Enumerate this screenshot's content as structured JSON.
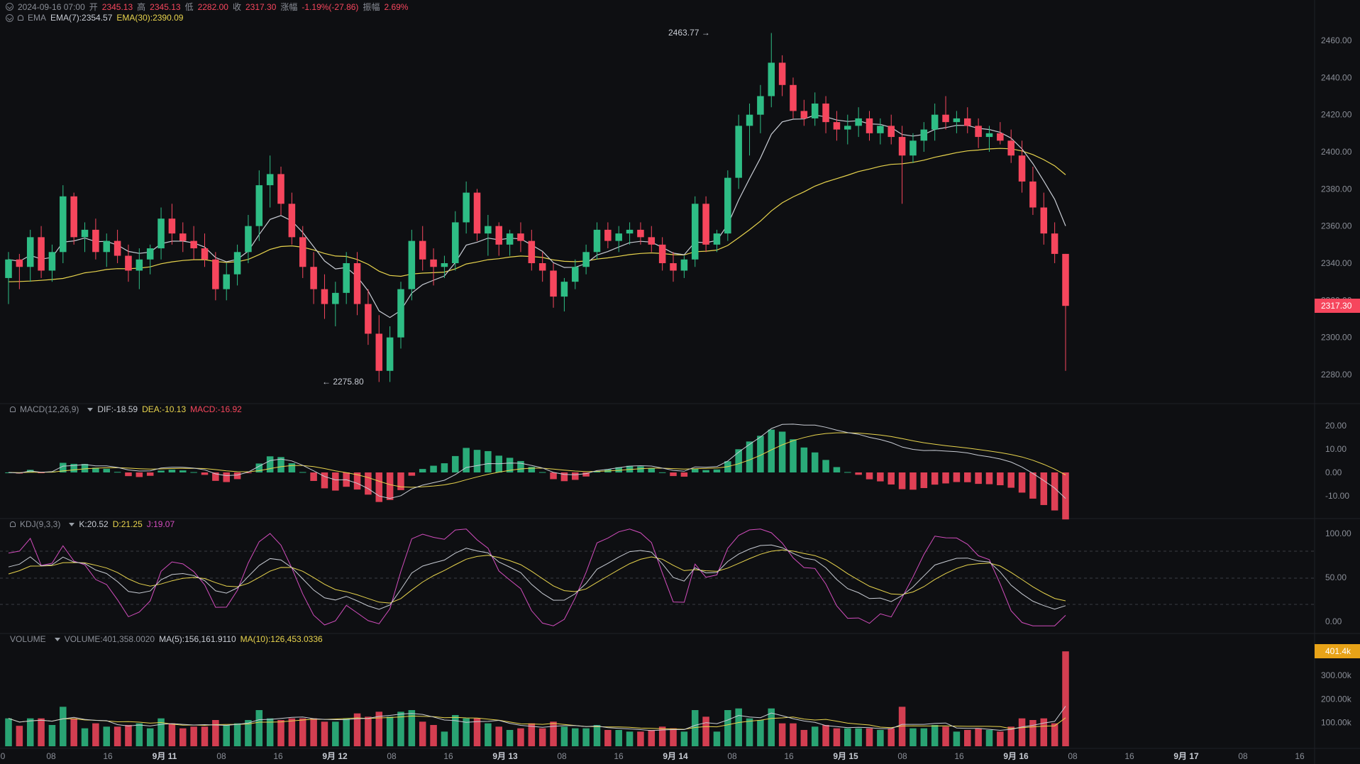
{
  "info_bar": {
    "date": "2024-09-16 07:00",
    "open_label": "开",
    "open": "2345.13",
    "high_label": "高",
    "high": "2345.13",
    "low_label": "低",
    "low": "2282.00",
    "close_label": "收",
    "close": "2317.30",
    "change_label": "涨幅",
    "change": "-1.19%(-27.86)",
    "amp_label": "振幅",
    "amp": "2.69%"
  },
  "ema_legend": {
    "name": "EMA",
    "ema7": "EMA(7):2354.57",
    "ema30": "EMA(30):2390.09"
  },
  "macd_legend": {
    "name": "MACD(12,26,9)",
    "dif": "DIF:-18.59",
    "dea": "DEA:-10.13",
    "macd": "MACD:-16.92"
  },
  "kdj_legend": {
    "name": "KDJ(9,3,3)",
    "k": "K:20.52",
    "d": "D:21.25",
    "j": "J:19.07"
  },
  "volume_legend": {
    "name": "VOLUME",
    "vol": "VOLUME:401,358.0020",
    "ma5": "MA(5):156,161.9110",
    "ma10": "MA(10):126,453.0336"
  },
  "price_axis": [
    "2460.00",
    "2440.00",
    "2420.00",
    "2400.00",
    "2380.00",
    "2360.00",
    "2340.00",
    "2300.00",
    "2280.00"
  ],
  "price_axis_hidden": "2320.00",
  "last_price": "2317.30",
  "high_marker": "2463.77 →",
  "low_marker": "← 2275.80",
  "macd_axis": [
    "20.00",
    "10.00",
    "0.00",
    "-10.00"
  ],
  "kdj_axis": [
    "100.00",
    "50.00",
    "0.00"
  ],
  "volume_axis": [
    "300.00k",
    "200.00k",
    "100.00k"
  ],
  "last_volume": "401.4k",
  "time_axis": [
    "0",
    "08",
    "16",
    "9月 11",
    "08",
    "16",
    "9月 12",
    "08",
    "16",
    "9月 13",
    "08",
    "16",
    "9月 14",
    "08",
    "16",
    "9月 15",
    "08",
    "16",
    "9月 16",
    "08",
    "16",
    "9月 17",
    "08",
    "16"
  ],
  "colors": {
    "up": "#2ebd85",
    "down": "#f6465d",
    "ema7": "#c8ccd4",
    "ema30": "#e8d44d",
    "kdj_j": "#d24dbd",
    "bg": "#0e0f12",
    "grid": "#1f2126"
  },
  "chart_data": {
    "type": "candlestick",
    "interval_hours": 2,
    "candles": [
      [
        2332,
        2346,
        2318,
        2342
      ],
      [
        2342,
        2345,
        2326,
        2338
      ],
      [
        2338,
        2358,
        2330,
        2354
      ],
      [
        2354,
        2360,
        2332,
        2336
      ],
      [
        2336,
        2350,
        2330,
        2346
      ],
      [
        2346,
        2382,
        2340,
        2376
      ],
      [
        2376,
        2378,
        2350,
        2354
      ],
      [
        2354,
        2362,
        2346,
        2358
      ],
      [
        2358,
        2364,
        2342,
        2346
      ],
      [
        2346,
        2356,
        2338,
        2352
      ],
      [
        2352,
        2358,
        2340,
        2344
      ],
      [
        2344,
        2350,
        2330,
        2336
      ],
      [
        2336,
        2348,
        2326,
        2342
      ],
      [
        2342,
        2350,
        2334,
        2348
      ],
      [
        2348,
        2370,
        2342,
        2364
      ],
      [
        2364,
        2372,
        2350,
        2356
      ],
      [
        2356,
        2362,
        2346,
        2352
      ],
      [
        2352,
        2360,
        2342,
        2348
      ],
      [
        2348,
        2356,
        2338,
        2342
      ],
      [
        2342,
        2346,
        2320,
        2326
      ],
      [
        2326,
        2340,
        2320,
        2334
      ],
      [
        2334,
        2350,
        2328,
        2346
      ],
      [
        2346,
        2366,
        2340,
        2360
      ],
      [
        2360,
        2390,
        2352,
        2382
      ],
      [
        2382,
        2398,
        2370,
        2388
      ],
      [
        2388,
        2392,
        2366,
        2372
      ],
      [
        2372,
        2378,
        2350,
        2354
      ],
      [
        2354,
        2360,
        2332,
        2338
      ],
      [
        2338,
        2346,
        2318,
        2326
      ],
      [
        2326,
        2334,
        2310,
        2318
      ],
      [
        2318,
        2330,
        2306,
        2324
      ],
      [
        2324,
        2346,
        2318,
        2340
      ],
      [
        2340,
        2346,
        2312,
        2318
      ],
      [
        2318,
        2326,
        2296,
        2302
      ],
      [
        2302,
        2312,
        2276,
        2282
      ],
      [
        2282,
        2306,
        2276,
        2300
      ],
      [
        2300,
        2330,
        2294,
        2326
      ],
      [
        2326,
        2358,
        2320,
        2352
      ],
      [
        2352,
        2360,
        2336,
        2342
      ],
      [
        2342,
        2348,
        2328,
        2338
      ],
      [
        2338,
        2344,
        2332,
        2340
      ],
      [
        2340,
        2368,
        2336,
        2362
      ],
      [
        2362,
        2384,
        2356,
        2378
      ],
      [
        2378,
        2380,
        2352,
        2356
      ],
      [
        2356,
        2366,
        2344,
        2360
      ],
      [
        2360,
        2362,
        2344,
        2350
      ],
      [
        2350,
        2358,
        2344,
        2356
      ],
      [
        2356,
        2362,
        2346,
        2352
      ],
      [
        2352,
        2358,
        2336,
        2340
      ],
      [
        2340,
        2346,
        2330,
        2336
      ],
      [
        2336,
        2340,
        2316,
        2322
      ],
      [
        2322,
        2332,
        2314,
        2330
      ],
      [
        2330,
        2342,
        2326,
        2338
      ],
      [
        2338,
        2350,
        2334,
        2346
      ],
      [
        2346,
        2362,
        2342,
        2358
      ],
      [
        2358,
        2362,
        2348,
        2352
      ],
      [
        2352,
        2360,
        2346,
        2356
      ],
      [
        2356,
        2362,
        2350,
        2358
      ],
      [
        2358,
        2362,
        2350,
        2354
      ],
      [
        2354,
        2360,
        2346,
        2350
      ],
      [
        2350,
        2354,
        2336,
        2340
      ],
      [
        2340,
        2346,
        2330,
        2336
      ],
      [
        2336,
        2344,
        2332,
        2342
      ],
      [
        2342,
        2376,
        2338,
        2372
      ],
      [
        2372,
        2376,
        2346,
        2350
      ],
      [
        2350,
        2358,
        2346,
        2356
      ],
      [
        2356,
        2390,
        2352,
        2386
      ],
      [
        2386,
        2420,
        2380,
        2414
      ],
      [
        2414,
        2426,
        2398,
        2420
      ],
      [
        2420,
        2436,
        2410,
        2430
      ],
      [
        2430,
        2464,
        2424,
        2448
      ],
      [
        2448,
        2452,
        2430,
        2436
      ],
      [
        2436,
        2440,
        2418,
        2422
      ],
      [
        2422,
        2428,
        2414,
        2418
      ],
      [
        2418,
        2432,
        2414,
        2426
      ],
      [
        2426,
        2430,
        2410,
        2416
      ],
      [
        2416,
        2422,
        2406,
        2412
      ],
      [
        2412,
        2420,
        2404,
        2414
      ],
      [
        2414,
        2424,
        2408,
        2418
      ],
      [
        2418,
        2422,
        2406,
        2410
      ],
      [
        2410,
        2418,
        2404,
        2414
      ],
      [
        2414,
        2420,
        2404,
        2408
      ],
      [
        2408,
        2414,
        2372,
        2398
      ],
      [
        2398,
        2410,
        2394,
        2406
      ],
      [
        2406,
        2416,
        2400,
        2412
      ],
      [
        2412,
        2426,
        2406,
        2420
      ],
      [
        2420,
        2430,
        2412,
        2416
      ],
      [
        2416,
        2422,
        2410,
        2418
      ],
      [
        2418,
        2424,
        2410,
        2414
      ],
      [
        2414,
        2418,
        2402,
        2408
      ],
      [
        2408,
        2414,
        2400,
        2410
      ],
      [
        2410,
        2416,
        2404,
        2406
      ],
      [
        2406,
        2412,
        2394,
        2398
      ],
      [
        2398,
        2406,
        2378,
        2384
      ],
      [
        2384,
        2392,
        2366,
        2370
      ],
      [
        2370,
        2378,
        2350,
        2356
      ],
      [
        2356,
        2362,
        2340,
        2345
      ],
      [
        2345,
        2345,
        2282,
        2317
      ]
    ],
    "ema7_last": 2354.57,
    "ema30_last": 2390.09,
    "session_high": 2463.77,
    "session_low": 2275.8,
    "macd": {
      "dif": -18.59,
      "dea": -10.13,
      "macd": -16.92
    },
    "kdj": {
      "k": 20.52,
      "d": 21.25,
      "j": 19.07
    },
    "volume_last": 401358.002,
    "volume_ma5": 156161.911,
    "volume_ma10": 126453.0336
  }
}
